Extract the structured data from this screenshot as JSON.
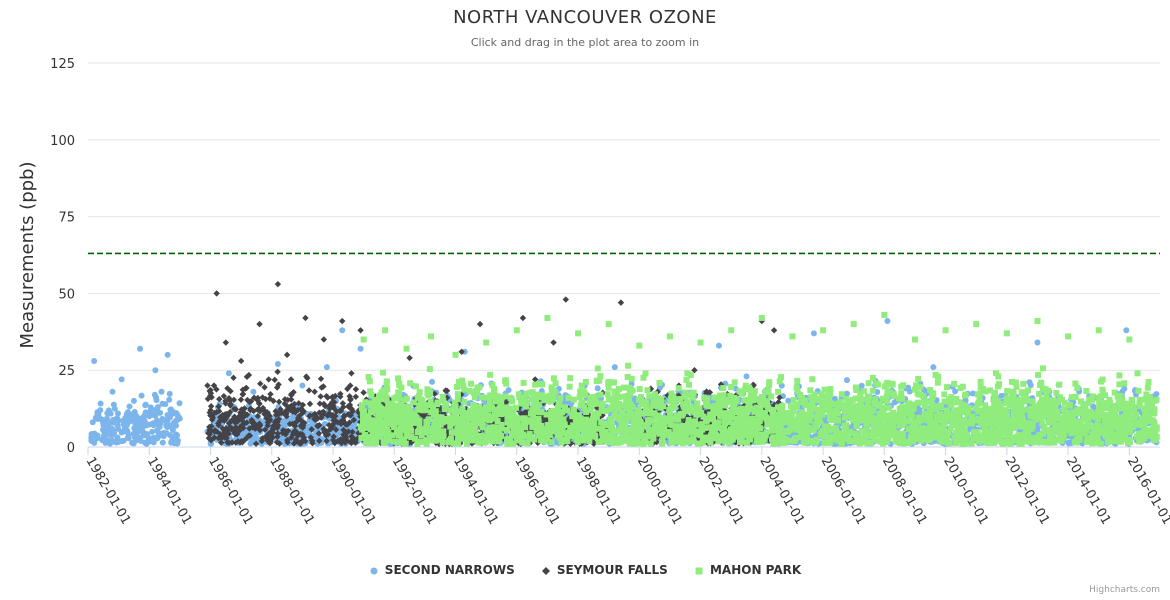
{
  "chart_data": {
    "type": "scatter",
    "title": "NORTH VANCOUVER OZONE",
    "subtitle": "Click and drag in the plot area to zoom in",
    "ylabel": "Measurements (ppb)",
    "xlabel": "",
    "ylim": [
      0,
      125
    ],
    "xlim": [
      1982.0,
      2017.0
    ],
    "y_ticks": [
      0,
      25,
      50,
      75,
      100,
      125
    ],
    "x_tick_years": [
      1982,
      1984,
      1986,
      1988,
      1990,
      1992,
      1994,
      1996,
      1998,
      2000,
      2002,
      2004,
      2006,
      2008,
      2010,
      2012,
      2014,
      2016
    ],
    "x_tick_labels": [
      "1982-01-01",
      "1984-01-01",
      "1986-01-01",
      "1988-01-01",
      "1990-01-01",
      "1992-01-01",
      "1994-01-01",
      "1996-01-01",
      "1998-01-01",
      "2000-01-01",
      "2002-01-01",
      "2004-01-01",
      "2006-01-01",
      "2008-01-01",
      "2010-01-01",
      "2012-01-01",
      "2014-01-01",
      "2016-01-01"
    ],
    "threshold": {
      "value": 63,
      "color": "#006400",
      "style": "dashed"
    },
    "grid": true,
    "legend_position": "bottom-center",
    "series": [
      {
        "name": "SECOND NARROWS",
        "color": "#7cb5ec",
        "marker": "circle",
        "x": [
          1982.2,
          1982.4,
          1982.6,
          1982.8,
          1983.1,
          1983.3,
          1983.5,
          1983.7,
          1984.0,
          1984.2,
          1984.4,
          1984.6,
          1984.8,
          1985.9,
          1986.3,
          1986.6,
          1987.0,
          1987.4,
          1987.8,
          1988.2,
          1988.6,
          1989.0,
          1989.4,
          1989.8,
          1990.1,
          1990.3,
          1990.6,
          1990.9,
          1992.5,
          1994.3,
          1996.1,
          1997.5,
          1999.2,
          2001.0,
          2002.6,
          2003.5,
          2004.1,
          2005.7,
          2007.4,
          2008.1,
          2009.6,
          2011.3,
          2013.0,
          2014.5,
          2015.9,
          2016.3
        ],
        "y": [
          28,
          12,
          5,
          18,
          22,
          3,
          15,
          32,
          10,
          25,
          18,
          30,
          7,
          5,
          14,
          24,
          8,
          18,
          3,
          27,
          12,
          20,
          6,
          26,
          15,
          38,
          10,
          32,
          9,
          31,
          17,
          4,
          26,
          11,
          33,
          23,
          18,
          37,
          9,
          41,
          26,
          3,
          34,
          14,
          38,
          6
        ]
      },
      {
        "name": "SEYMOUR FALLS",
        "color": "#434348",
        "marker": "diamond",
        "x": [
          1985.9,
          1986.2,
          1986.5,
          1986.8,
          1987.0,
          1987.3,
          1987.6,
          1987.9,
          1988.2,
          1988.5,
          1988.8,
          1989.1,
          1989.4,
          1989.7,
          1990.0,
          1990.3,
          1990.6,
          1990.9,
          1991.2,
          1991.6,
          1992.5,
          1993.4,
          1994.2,
          1994.8,
          1995.5,
          1996.2,
          1996.6,
          1997.2,
          1997.6,
          1998.1,
          1999.4,
          2000.6,
          2001.8,
          2003.1,
          2004.0,
          2004.4
        ],
        "y": [
          20,
          50,
          34,
          8,
          28,
          12,
          40,
          22,
          53,
          30,
          5,
          42,
          18,
          35,
          10,
          41,
          24,
          38,
          6,
          15,
          29,
          5,
          31,
          40,
          14,
          42,
          22,
          34,
          48,
          9,
          47,
          18,
          25,
          7,
          41,
          38
        ]
      },
      {
        "name": "MAHON PARK",
        "color": "#90ed7d",
        "marker": "square",
        "x": [
          1991.0,
          1991.3,
          1991.7,
          1992.0,
          1992.4,
          1992.8,
          1993.2,
          1993.6,
          1994.0,
          1994.5,
          1995.0,
          1995.5,
          1996.0,
          1996.5,
          1997.0,
          1997.5,
          1998.0,
          1998.5,
          1999.0,
          1999.5,
          2000.0,
          2000.5,
          2001.0,
          2001.5,
          2002.0,
          2002.5,
          2003.0,
          2003.5,
          2004.0,
          2004.5,
          2005.0,
          2005.5,
          2006.0,
          2006.5,
          2007.0,
          2007.5,
          2008.0,
          2008.5,
          2009.0,
          2009.5,
          2010.0,
          2010.5,
          2011.0,
          2011.5,
          2012.0,
          2012.5,
          2013.0,
          2013.5,
          2014.0,
          2014.5,
          2015.0,
          2015.5,
          2016.0,
          2016.5
        ],
        "y": [
          35,
          5,
          38,
          12,
          32,
          8,
          36,
          15,
          30,
          10,
          34,
          6,
          38,
          12,
          42,
          9,
          37,
          14,
          40,
          7,
          33,
          11,
          36,
          5,
          34,
          13,
          38,
          8,
          42,
          10,
          36,
          6,
          38,
          14,
          40,
          9,
          43,
          7,
          35,
          12,
          38,
          5,
          40,
          11,
          37,
          8,
          41,
          13,
          36,
          6,
          38,
          10,
          35,
          7
        ]
      }
    ]
  },
  "credits": "Highcharts.com"
}
